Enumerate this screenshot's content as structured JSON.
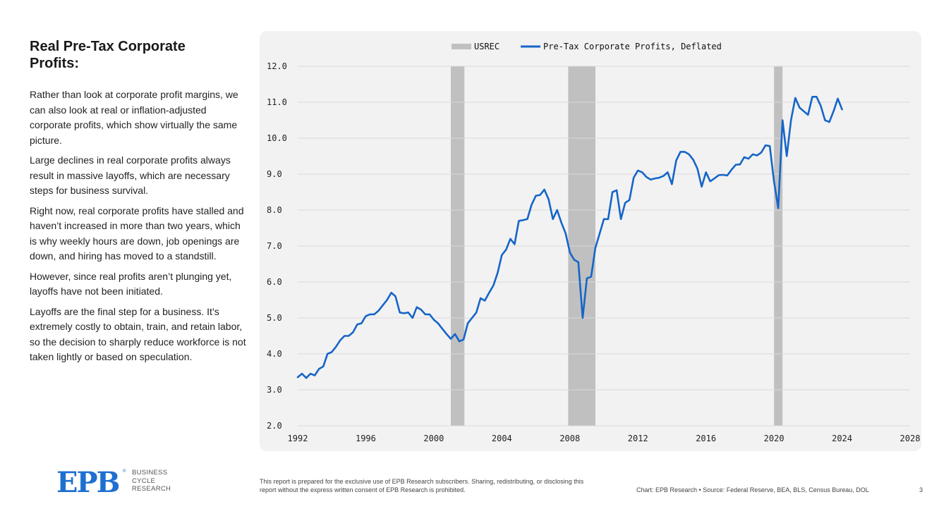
{
  "sidebar": {
    "title": "Real Pre-Tax Corporate Profits:",
    "paragraphs": [
      "Rather than look at corporate profit margins, we can also look at real or inflation-adjusted corporate profits, which show virtually the same picture.",
      "Large declines in real corporate profits always result in massive layoffs, which are necessary steps for business survival.",
      "Right now, real corporate profits have stalled and haven’t increased in more than two years, which is why weekly hours are down, job openings are down, and hiring has moved to a standstill.",
      "However, since real profits aren’t plunging yet, layoffs have not been initiated.",
      "Layoffs are the final step for a business. It’s extremely costly to obtain, train, and retain labor, so the decision to sharply reduce workforce is not taken lightly or based on speculation."
    ]
  },
  "footer": {
    "logo_mark": "EPB",
    "logo_reg": "®",
    "logo_lines": [
      "BUSINESS",
      "CYCLE",
      "RESEARCH"
    ],
    "disclaimer": "This report is prepared for the exclusive use of EPB Research subscribers. Sharing, redistributing, or disclosing this report without the express written consent of EPB Research is prohibited.",
    "source": "Chart: EPB Research  •  Source: Federal Reserve, BEA, BLS, Census Bureau, DOL",
    "page_number": "3"
  },
  "colors": {
    "line": "#1565c8",
    "recession": "#c0c0c0",
    "grid": "#d9d9d9",
    "card": "#f2f2f2"
  },
  "chart_data": {
    "type": "line",
    "title": "",
    "xlabel": "",
    "ylabel": "",
    "xlim": [
      1992,
      2028
    ],
    "ylim": [
      2.0,
      12.0
    ],
    "x_ticks": [
      "1992",
      "1996",
      "2000",
      "2004",
      "2008",
      "2012",
      "2016",
      "2020",
      "2024",
      "2028"
    ],
    "y_ticks": [
      "2.0",
      "3.0",
      "4.0",
      "5.0",
      "6.0",
      "7.0",
      "8.0",
      "9.0",
      "10.0",
      "11.0",
      "12.0"
    ],
    "legend": {
      "placement": "top-center",
      "items": [
        "USREC",
        "Pre-Tax Corporate Profits, Deflated"
      ]
    },
    "recessions": [
      {
        "name": "USREC",
        "start": 2001.0,
        "end": 2001.8
      },
      {
        "name": "USREC",
        "start": 2007.9,
        "end": 2009.5
      },
      {
        "name": "USREC",
        "start": 2020.0,
        "end": 2020.5
      }
    ],
    "series": [
      {
        "name": "Pre-Tax Corporate Profits, Deflated",
        "x": [
          1992.0,
          1992.25,
          1992.5,
          1992.75,
          1993.0,
          1993.25,
          1993.5,
          1993.75,
          1994.0,
          1994.25,
          1994.5,
          1994.75,
          1995.0,
          1995.25,
          1995.5,
          1995.75,
          1996.0,
          1996.25,
          1996.5,
          1996.75,
          1997.0,
          1997.25,
          1997.5,
          1997.75,
          1998.0,
          1998.25,
          1998.5,
          1998.75,
          1999.0,
          1999.25,
          1999.5,
          1999.75,
          2000.0,
          2000.25,
          2000.5,
          2000.75,
          2001.0,
          2001.25,
          2001.5,
          2001.75,
          2002.0,
          2002.25,
          2002.5,
          2002.75,
          2003.0,
          2003.25,
          2003.5,
          2003.75,
          2004.0,
          2004.25,
          2004.5,
          2004.75,
          2005.0,
          2005.25,
          2005.5,
          2005.75,
          2006.0,
          2006.25,
          2006.5,
          2006.75,
          2007.0,
          2007.25,
          2007.5,
          2007.75,
          2008.0,
          2008.25,
          2008.5,
          2008.75,
          2009.0,
          2009.25,
          2009.5,
          2009.75,
          2010.0,
          2010.25,
          2010.5,
          2010.75,
          2011.0,
          2011.25,
          2011.5,
          2011.75,
          2012.0,
          2012.25,
          2012.5,
          2012.75,
          2013.0,
          2013.25,
          2013.5,
          2013.75,
          2014.0,
          2014.25,
          2014.5,
          2014.75,
          2015.0,
          2015.25,
          2015.5,
          2015.75,
          2016.0,
          2016.25,
          2016.5,
          2016.75,
          2017.0,
          2017.25,
          2017.5,
          2017.75,
          2018.0,
          2018.25,
          2018.5,
          2018.75,
          2019.0,
          2019.25,
          2019.5,
          2019.75,
          2020.0,
          2020.25,
          2020.5,
          2020.75,
          2021.0,
          2021.25,
          2021.5,
          2021.75,
          2022.0,
          2022.25,
          2022.5,
          2022.75,
          2023.0,
          2023.25,
          2023.5,
          2023.75,
          2024.0
        ],
        "values": [
          3.35,
          3.45,
          3.33,
          3.45,
          3.4,
          3.58,
          3.65,
          4.0,
          4.05,
          4.2,
          4.38,
          4.5,
          4.5,
          4.6,
          4.82,
          4.85,
          5.05,
          5.1,
          5.1,
          5.2,
          5.35,
          5.5,
          5.7,
          5.6,
          5.15,
          5.13,
          5.15,
          5.0,
          5.3,
          5.23,
          5.1,
          5.1,
          4.95,
          4.85,
          4.7,
          4.55,
          4.42,
          4.55,
          4.35,
          4.4,
          4.85,
          5.0,
          5.15,
          5.55,
          5.48,
          5.7,
          5.9,
          6.25,
          6.75,
          6.9,
          7.2,
          7.05,
          7.7,
          7.72,
          7.75,
          8.15,
          8.4,
          8.42,
          8.57,
          8.3,
          7.75,
          8.0,
          7.65,
          7.35,
          6.82,
          6.62,
          6.55,
          5.0,
          6.1,
          6.15,
          6.95,
          7.35,
          7.75,
          7.75,
          8.5,
          8.55,
          7.75,
          8.2,
          8.28,
          8.9,
          9.1,
          9.05,
          8.92,
          8.85,
          8.88,
          8.9,
          8.95,
          9.05,
          8.72,
          9.38,
          9.62,
          9.62,
          9.55,
          9.4,
          9.15,
          8.65,
          9.05,
          8.8,
          8.88,
          8.97,
          8.98,
          8.96,
          9.12,
          9.26,
          9.27,
          9.47,
          9.43,
          9.55,
          9.52,
          9.6,
          9.8,
          9.78,
          8.8,
          8.05,
          10.5,
          9.5,
          10.5,
          11.12,
          10.85,
          10.75,
          10.65,
          11.15,
          11.15,
          10.9,
          10.5,
          10.45,
          10.75,
          11.1,
          10.8
        ]
      }
    ]
  }
}
